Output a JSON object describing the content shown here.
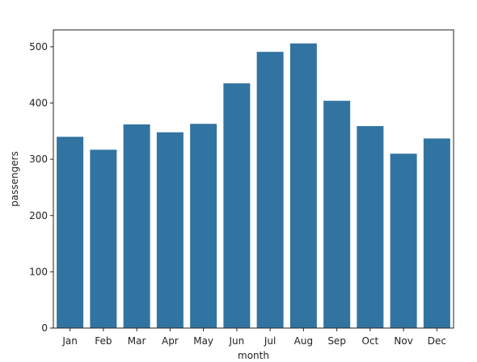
{
  "chart_data": {
    "type": "bar",
    "xlabel": "month",
    "ylabel": "passengers",
    "categories": [
      "Jan",
      "Feb",
      "Mar",
      "Apr",
      "May",
      "Jun",
      "Jul",
      "Aug",
      "Sep",
      "Oct",
      "Nov",
      "Dec"
    ],
    "values": [
      340,
      317,
      362,
      348,
      363,
      435,
      491,
      506,
      404,
      359,
      310,
      337
    ],
    "ylim": [
      0,
      530
    ],
    "yticks": [
      0,
      100,
      200,
      300,
      400,
      500
    ],
    "grid": false,
    "colors": {
      "bar": "#3274a1"
    }
  }
}
